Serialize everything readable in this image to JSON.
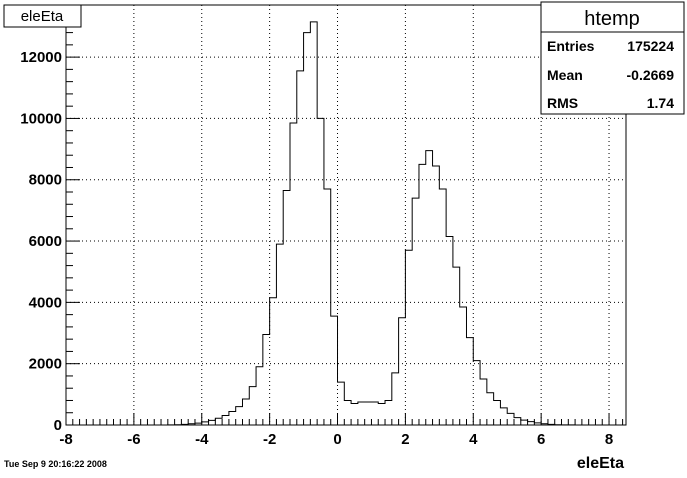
{
  "title_box": {
    "label": "eleEta"
  },
  "stats_box": {
    "title": "htemp",
    "rows": [
      {
        "label": "Entries",
        "value": "175224"
      },
      {
        "label": "Mean",
        "value": "-0.2669"
      },
      {
        "label": "RMS",
        "value": "1.74"
      }
    ]
  },
  "timestamp": "Tue Sep  9 20:16:22 2008",
  "chart_data": {
    "type": "bar",
    "histogram": "step",
    "xlabel": "eleEta",
    "ylabel": "",
    "xlim": [
      -8.0,
      8.5
    ],
    "ylim": [
      0,
      13700
    ],
    "xticks": [
      -8,
      -6,
      -4,
      -2,
      0,
      2,
      4,
      6,
      8
    ],
    "yticks": [
      0,
      2000,
      4000,
      6000,
      8000,
      10000,
      12000
    ],
    "grid": true,
    "bin_width": 0.2,
    "x_start": -5.0,
    "values": [
      5,
      10,
      20,
      40,
      60,
      100,
      150,
      220,
      310,
      440,
      600,
      850,
      1250,
      1900,
      2950,
      4150,
      5900,
      7650,
      9850,
      11550,
      12800,
      13150,
      10000,
      7700,
      3550,
      1400,
      800,
      700,
      750,
      750,
      750,
      700,
      800,
      1700,
      3500,
      5700,
      7400,
      8500,
      8950,
      8450,
      7700,
      6150,
      5150,
      3850,
      2850,
      2100,
      1500,
      1050,
      800,
      560,
      380,
      240,
      160,
      110,
      70,
      40,
      20,
      10,
      5,
      5
    ]
  }
}
